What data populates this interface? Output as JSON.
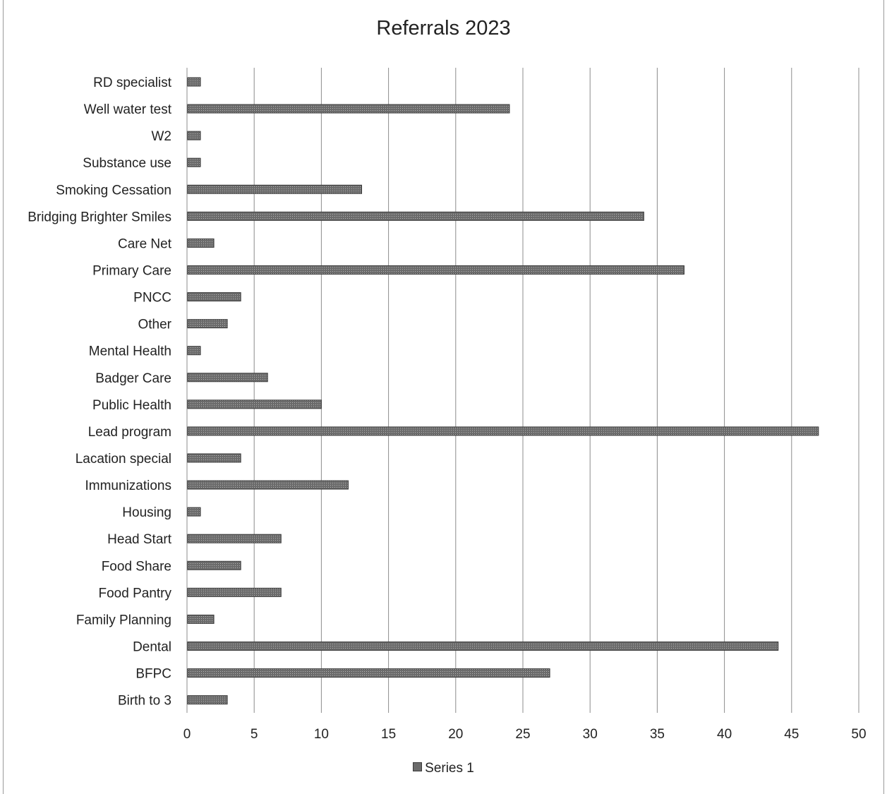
{
  "chart_data": {
    "type": "bar",
    "orientation": "horizontal",
    "title": "Referrals 2023",
    "xlabel": "",
    "ylabel": "",
    "xlim": [
      0,
      50
    ],
    "x_ticks": [
      0,
      5,
      10,
      15,
      20,
      25,
      30,
      35,
      40,
      45,
      50
    ],
    "grid": "vertical",
    "legend_position": "bottom",
    "bar_color": "#6b6b6b",
    "categories": [
      "RD specialist",
      "Well water test",
      "W2",
      "Substance use",
      "Smoking Cessation",
      "Bridging Brighter Smiles",
      "Care Net",
      "Primary Care",
      "PNCC",
      "Other",
      "Mental Health",
      "Badger Care",
      "Public Health",
      "Lead program",
      "Lacation special",
      "Immunizations",
      "Housing",
      "Head Start",
      "Food Share",
      "Food Pantry",
      "Family Planning",
      "Dental",
      "BFPC",
      "Birth to 3"
    ],
    "series": [
      {
        "name": "Series 1",
        "values": [
          1,
          24,
          1,
          1,
          13,
          34,
          2,
          37,
          4,
          3,
          1,
          6,
          10,
          47,
          4,
          12,
          1,
          7,
          4,
          7,
          2,
          44,
          27,
          3
        ]
      }
    ]
  }
}
